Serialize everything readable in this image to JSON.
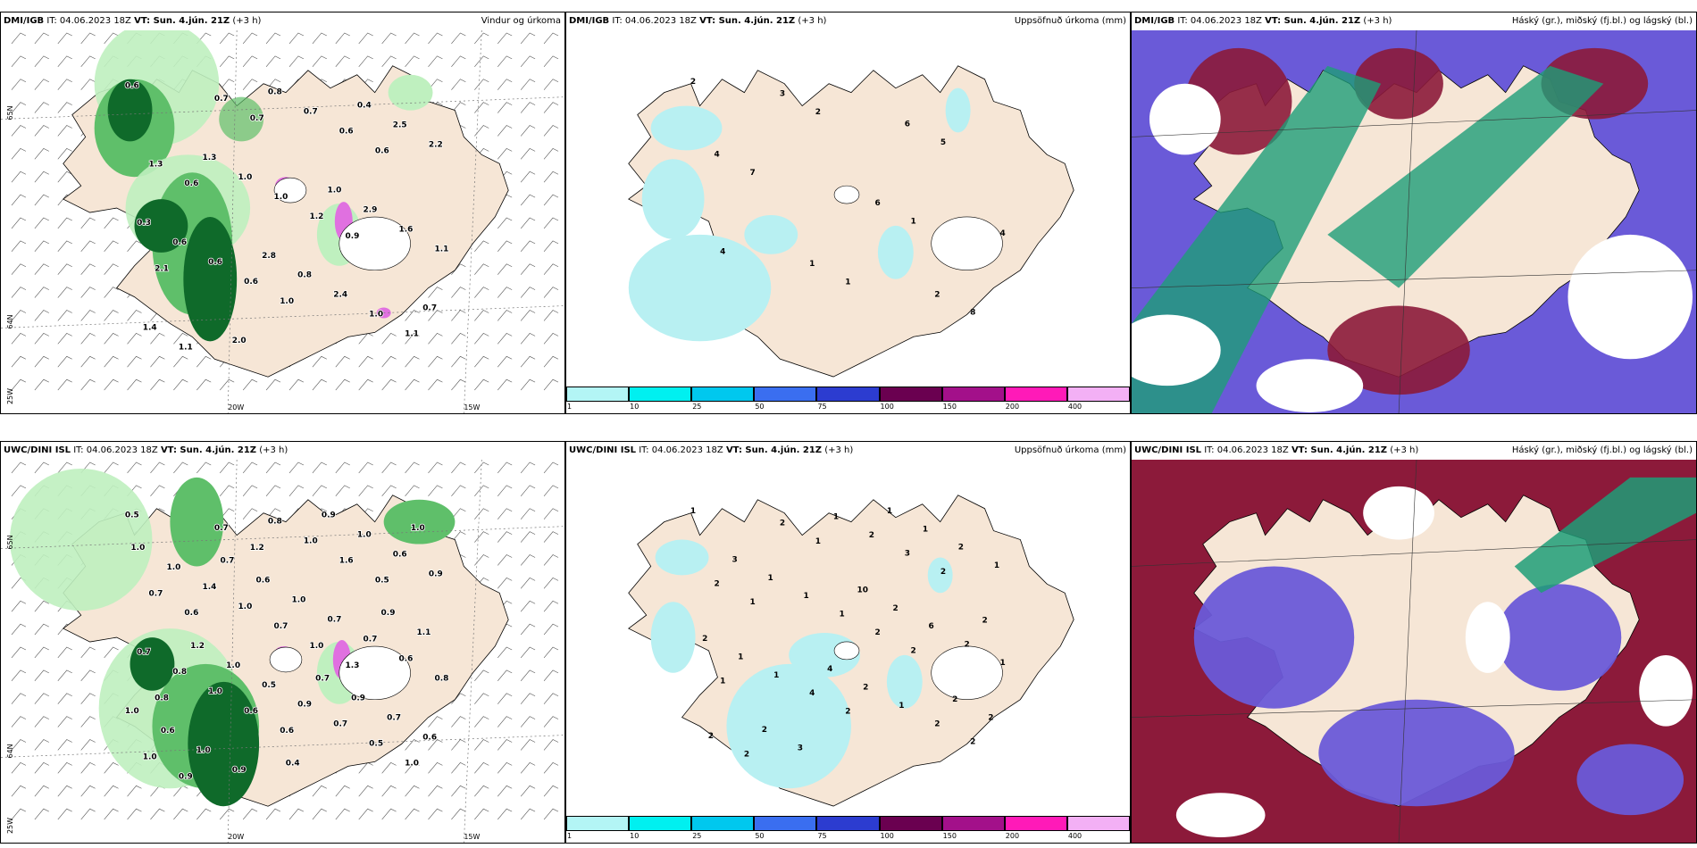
{
  "rows": [
    {
      "model": "DMI/IGB",
      "it": "IT: 04.06.2023 18Z",
      "vt": "VT: Sun. 4.jún. 21Z",
      "lead": "(+3 h)",
      "panels": [
        {
          "title": "Vindur og úrkoma",
          "values": [
            "0.6",
            "0.9",
            "0.7",
            "2.1",
            "0.6",
            "1.0",
            "0.6",
            "1.1",
            "1.2",
            "0.7",
            "1.1",
            "0.6",
            "0.6",
            "1.3",
            "1.0",
            "1.0",
            "1.1",
            "1.6",
            "0.7",
            "0.6",
            "2.2",
            "2.4",
            "1.0",
            "1.4",
            "2.9",
            "0.8",
            "0.6",
            "2.5",
            "0.8",
            "1.3",
            "0.7",
            "1.0",
            "2.0",
            "0.3",
            "0.4",
            "2.8"
          ],
          "axis": [
            "20W",
            "15W",
            "65N",
            "64N",
            "25W"
          ]
        },
        {
          "title": "Uppsöfnuð úrkoma (mm)",
          "values": [
            "2",
            "1",
            "2",
            "4",
            "5",
            "1",
            "7",
            "8",
            "6",
            "3",
            "4",
            "6",
            "1",
            "4",
            "2"
          ]
        },
        {
          "title": "Háský (gr.), miðský (fj.bl.) og lágský (bl.)"
        }
      ]
    },
    {
      "model": "UWC/DINI ISL",
      "it": "IT: 04.06.2023 18Z",
      "vt": "VT: Sun. 4.jún. 21Z",
      "lead": "(+3 h)",
      "panels": [
        {
          "title": "",
          "values": [
            "0.5",
            "1.3",
            "1.2",
            "0.8",
            "0.5",
            "0.6",
            "0.6",
            "1.0",
            "1.0",
            "0.7",
            "0.8",
            "1.6",
            "0.6",
            "0.7",
            "0.5",
            "0.7",
            "0.9",
            "0.6",
            "1.0",
            "1.0",
            "0.9",
            "0.7",
            "1.0",
            "1.0",
            "0.7",
            "0.8",
            "0.8",
            "0.6",
            "0.9",
            "1.4",
            "0.6",
            "0.7",
            "0.9",
            "0.7",
            "1.0",
            "0.5",
            "1.0",
            "0.7",
            "1.0",
            "1.0",
            "1.1",
            "0.9",
            "1.0",
            "1.0",
            "0.9",
            "0.6",
            "0.6",
            "0.9",
            "0.4",
            "1.2",
            "1.0",
            "0.7",
            "0.7",
            "1.0"
          ],
          "axis": [
            "20W",
            "15W",
            "65N",
            "64N",
            "25W"
          ]
        },
        {
          "title": "",
          "values": [
            "1",
            "2",
            "1",
            "1",
            "2",
            "2",
            "1",
            "2",
            "2",
            "2",
            "1",
            "3",
            "4",
            "2",
            "2",
            "1",
            "2",
            "2",
            "2",
            "1",
            "1",
            "1",
            "1",
            "2",
            "6",
            "1",
            "1",
            "2",
            "2",
            "1",
            "2",
            "2",
            "3",
            "2",
            "1",
            "4",
            "3",
            "2",
            "10",
            "2",
            "2",
            "1"
          ]
        },
        {
          "title": ""
        }
      ]
    }
  ],
  "precip_legend": {
    "ticks": [
      "1",
      "10",
      "25",
      "50",
      "75",
      "100",
      "150",
      "200",
      "400"
    ],
    "colors": [
      "#b3f5f5",
      "#00f0f0",
      "#00c8ee",
      "#3a6ef0",
      "#2c3cd0",
      "#6a0050",
      "#a3108a",
      "#ff1ab8",
      "#f3b0f5"
    ]
  },
  "colors": {
    "land": "#f6e6d6",
    "precip_light": "#bff0bf",
    "precip_mid": "#5fbf6a",
    "precip_dark": "#0f6a2a",
    "accum": "#b8f0f2",
    "cloud_high": "#1e9e78",
    "cloud_mid": "#6a5ad8",
    "cloud_low": "#8c1a3a"
  }
}
